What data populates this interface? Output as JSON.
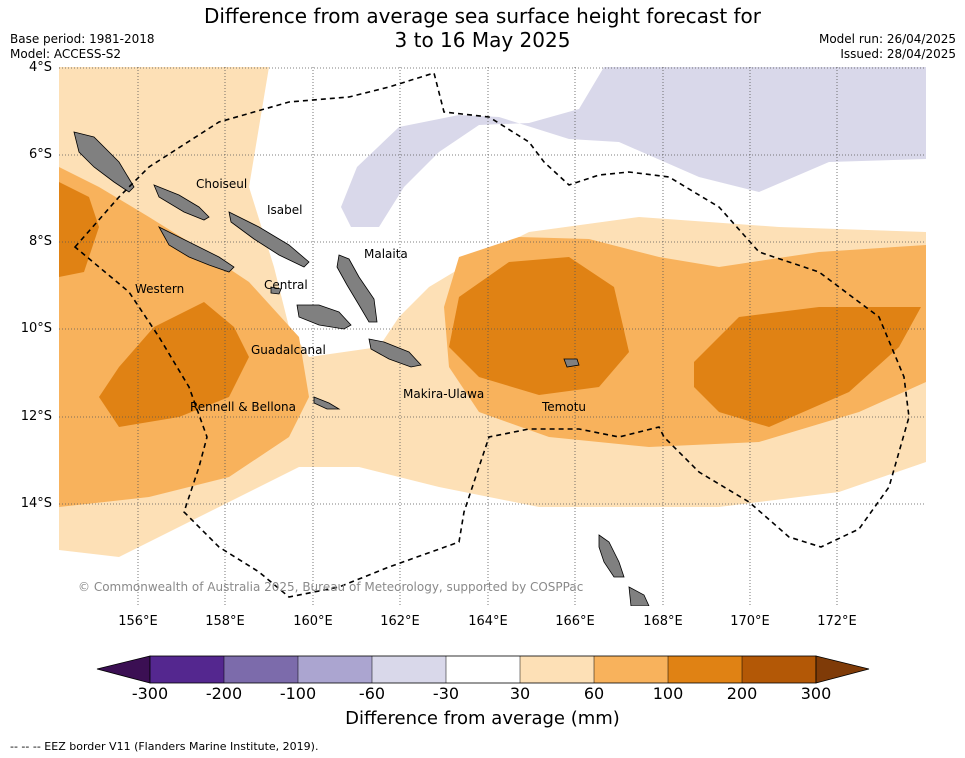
{
  "title_line1": "Difference from average sea surface height forecast for",
  "title_line2": "3 to 16 May 2025",
  "base_period": "Base period: 1981-2018",
  "model": "Model: ACCESS-S2",
  "model_run": "Model run: 26/04/2025",
  "issued": "Issued: 28/04/2025",
  "lat_ticks": [
    "4°S",
    "6°S",
    "8°S",
    "10°S",
    "12°S",
    "14°S"
  ],
  "lon_ticks": [
    "156°E",
    "158°E",
    "160°E",
    "162°E",
    "164°E",
    "166°E",
    "168°E",
    "170°E",
    "172°E"
  ],
  "regions": [
    "Choiseul",
    "Isabel",
    "Malaita",
    "Western",
    "Central",
    "Guadalcanal",
    "Rennell & Bellona",
    "Makira-Ulawa",
    "Temotu"
  ],
  "credit": "© Commonwealth of Australia 2025, Bureau of Meteorology, supported by COSPPac",
  "colorbar": {
    "labels": [
      "-300",
      "-200",
      "-100",
      "-60",
      "-30",
      "30",
      "60",
      "100",
      "200",
      "300"
    ],
    "colors": [
      "#3b0f53",
      "#54278f",
      "#7c6bab",
      "#aba5d0",
      "#d9d8ea",
      "#ffffff",
      "#fde0b6",
      "#f8b25c",
      "#e08214",
      "#b35806",
      "#7f3b08"
    ],
    "title": "Difference from average (mm)"
  },
  "footnote": "--  --  -- EEZ border V11 (Flanders Marine Institute, 2019)."
}
